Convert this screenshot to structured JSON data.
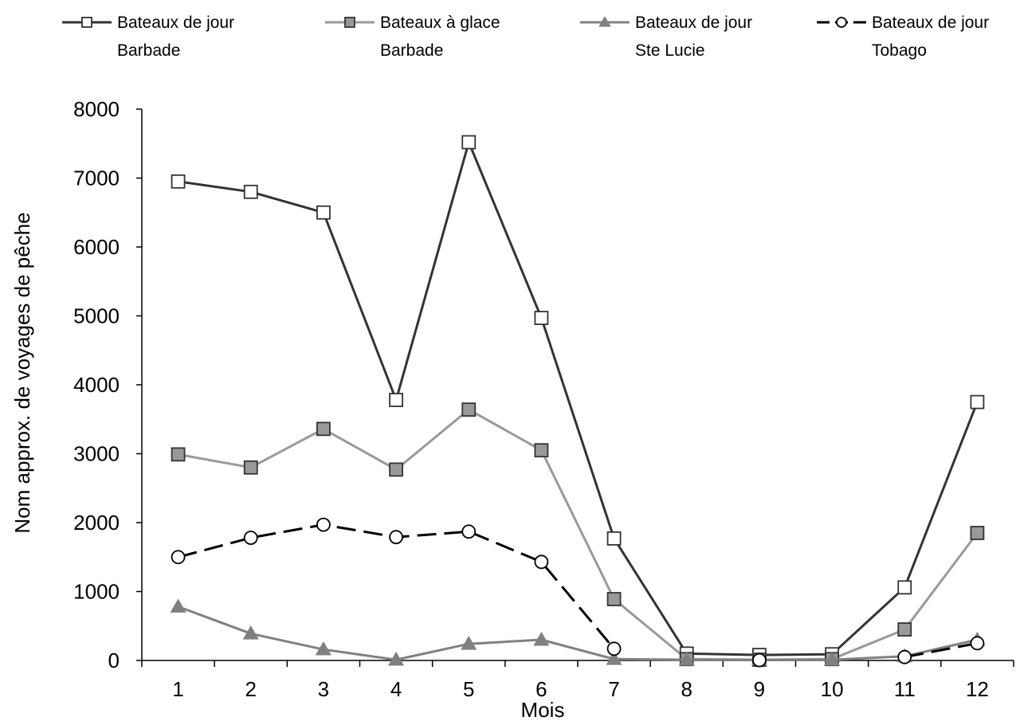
{
  "chart_data": {
    "type": "line",
    "xlabel": "Mois",
    "ylabel": "Nom approx. de voyages de pêche",
    "x": [
      1,
      2,
      3,
      4,
      5,
      6,
      7,
      8,
      9,
      10,
      11,
      12
    ],
    "ylim": [
      0,
      8000
    ],
    "yticks": [
      0,
      1000,
      2000,
      3000,
      4000,
      5000,
      6000,
      7000,
      8000
    ],
    "grid": false,
    "legend_position": "top",
    "series": [
      {
        "name_line1": "Bateaux de jour",
        "name_line2": "Barbade",
        "values": [
          6950,
          6800,
          6500,
          3780,
          7520,
          4970,
          1770,
          100,
          80,
          90,
          1060,
          3750
        ],
        "color": "#333333",
        "marker": "square-open",
        "dash": false
      },
      {
        "name_line1": "Bateaux à glace",
        "name_line2": "Barbade",
        "values": [
          2990,
          2800,
          3360,
          2770,
          3640,
          3050,
          890,
          20,
          10,
          20,
          450,
          1850
        ],
        "color": "#999999",
        "marker": "square-filled",
        "dash": false
      },
      {
        "name_line1": "Bateaux de jour",
        "name_line2": "Ste Lucie",
        "values": [
          780,
          390,
          160,
          10,
          240,
          300,
          20,
          10,
          10,
          10,
          60,
          300
        ],
        "color": "#808080",
        "marker": "triangle",
        "dash": false
      },
      {
        "name_line1": "Bateaux de jour",
        "name_line2": "Tobago",
        "values": [
          1500,
          1780,
          1970,
          1790,
          1870,
          1430,
          170,
          null,
          5,
          null,
          50,
          250
        ],
        "color": "#000000",
        "marker": "circle-open",
        "dash": true
      }
    ]
  }
}
